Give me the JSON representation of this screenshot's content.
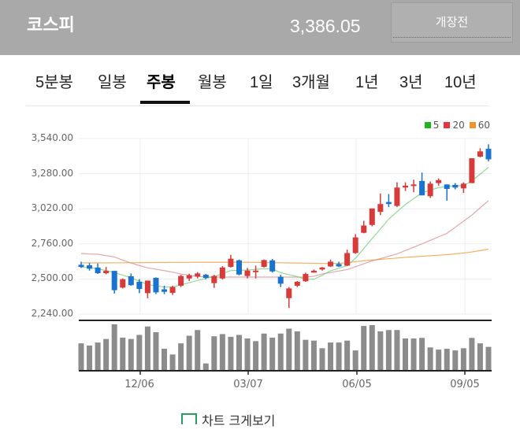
{
  "header": {
    "title": "코스피",
    "price": "3,386.05",
    "status_button": "개장전"
  },
  "tabs": [
    {
      "label": "5분봉",
      "active": false
    },
    {
      "label": "일봉",
      "active": false
    },
    {
      "label": "주봉",
      "active": true
    },
    {
      "label": "월봉",
      "active": false
    },
    {
      "label": "1일",
      "active": false
    },
    {
      "label": "3개월",
      "active": false
    },
    {
      "label": "1년",
      "active": false
    },
    {
      "label": "3년",
      "active": false
    },
    {
      "label": "10년",
      "active": false
    }
  ],
  "bottom_link": "차트 크게보기",
  "chart_data": {
    "type": "candlestick",
    "title": "",
    "legend": [
      {
        "label": "5",
        "color": "#1fb31f"
      },
      {
        "label": "20",
        "color": "#e8343c"
      },
      {
        "label": "60",
        "color": "#f0962e"
      }
    ],
    "legend_position": "top-right",
    "colors": {
      "up": "#d83a3a",
      "down": "#1a73d0",
      "volume": "#8c8c8c"
    },
    "ylim": [
      2240,
      3540
    ],
    "y_ticks": [
      "3,540.00",
      "3,280.00",
      "3,020.00",
      "2,760.00",
      "2,500.00",
      "2,240.00"
    ],
    "y_tick_values": [
      3540,
      3280,
      3020,
      2760,
      2500,
      2240
    ],
    "x_ticks": [
      "12/06",
      "03/07",
      "06/05",
      "09/05"
    ],
    "grid": true,
    "ohlc": [
      [
        2605,
        2628,
        2581,
        2589
      ],
      [
        2601,
        2618,
        2562,
        2576
      ],
      [
        2585,
        2615,
        2537,
        2543
      ],
      [
        2543,
        2589,
        2535,
        2560
      ],
      [
        2560,
        2560,
        2392,
        2417
      ],
      [
        2436,
        2504,
        2430,
        2498
      ],
      [
        2520,
        2541,
        2450,
        2454
      ],
      [
        2479,
        2498,
        2395,
        2426
      ],
      [
        2395,
        2488,
        2357,
        2488
      ],
      [
        2508,
        2512,
        2388,
        2401
      ],
      [
        2423,
        2450,
        2388,
        2405
      ],
      [
        2397,
        2450,
        2382,
        2440
      ],
      [
        2450,
        2531,
        2440,
        2522
      ],
      [
        2504,
        2539,
        2485,
        2527
      ],
      [
        2518,
        2551,
        2504,
        2541
      ],
      [
        2531,
        2537,
        2498,
        2508
      ],
      [
        2469,
        2531,
        2434,
        2522
      ],
      [
        2504,
        2595,
        2496,
        2585
      ],
      [
        2589,
        2679,
        2585,
        2650
      ],
      [
        2638,
        2644,
        2527,
        2533
      ],
      [
        2522,
        2582,
        2504,
        2562
      ],
      [
        2556,
        2599,
        2504,
        2562
      ],
      [
        2589,
        2644,
        2585,
        2640
      ],
      [
        2638,
        2648,
        2547,
        2556
      ],
      [
        2516,
        2531,
        2440,
        2465
      ],
      [
        2358,
        2440,
        2285,
        2430
      ],
      [
        2450,
        2485,
        2440,
        2479
      ],
      [
        2483,
        2547,
        2479,
        2537
      ],
      [
        2547,
        2570,
        2547,
        2561
      ],
      [
        2570,
        2589,
        2562,
        2585
      ],
      [
        2593,
        2644,
        2589,
        2628
      ],
      [
        2611,
        2628,
        2589,
        2593
      ],
      [
        2599,
        2717,
        2595,
        2692
      ],
      [
        2692,
        2832,
        2686,
        2808
      ],
      [
        2842,
        2931,
        2838,
        2896
      ],
      [
        2900,
        3022,
        2890,
        3022
      ],
      [
        2997,
        3133,
        2973,
        3055
      ],
      [
        3070,
        3129,
        3032,
        3055
      ],
      [
        3041,
        3216,
        3032,
        3177
      ],
      [
        3177,
        3216,
        3152,
        3191
      ],
      [
        3191,
        3235,
        3142,
        3200
      ],
      [
        3226,
        3288,
        3119,
        3119
      ],
      [
        3113,
        3222,
        3100,
        3206
      ],
      [
        3210,
        3245,
        3191,
        3232
      ],
      [
        3200,
        3200,
        3080,
        3167
      ],
      [
        3197,
        3210,
        3164,
        3177
      ],
      [
        3171,
        3216,
        3138,
        3206
      ],
      [
        3210,
        3394,
        3210,
        3394
      ],
      [
        3406,
        3468,
        3400,
        3445
      ],
      [
        3464,
        3497,
        3371,
        3386
      ]
    ],
    "ma5": [
      2589,
      2583,
      2576,
      2562,
      2547,
      2528,
      2508,
      2484,
      2459,
      2450,
      2440,
      2441,
      2456,
      2472,
      2489,
      2504,
      2518,
      2540,
      2562,
      2564,
      2566,
      2571,
      2576,
      2574,
      2547,
      2532,
      2518,
      2498,
      2498,
      2527,
      2560,
      2580,
      2599,
      2653,
      2726,
      2799,
      2871,
      2944,
      2998,
      3051,
      3095,
      3138,
      3158,
      3177,
      3184,
      3191,
      3191,
      3226,
      3277,
      3327
    ],
    "ma20": [
      2688,
      2685,
      2683,
      2673,
      2663,
      2640,
      2618,
      2600,
      2582,
      2572,
      2562,
      2550,
      2537,
      2528,
      2518,
      2516,
      2514,
      2514,
      2514,
      2514,
      2514,
      2514,
      2514,
      2514,
      2514,
      2514,
      2514,
      2514,
      2520,
      2537,
      2548,
      2559,
      2570,
      2591,
      2613,
      2634,
      2651,
      2668,
      2686,
      2711,
      2735,
      2760,
      2786,
      2812,
      2838,
      2883,
      2928,
      2973,
      3027,
      3080
    ],
    "ma60": [
      2619,
      2619,
      2619,
      2619,
      2620,
      2620,
      2620,
      2621,
      2621,
      2622,
      2622,
      2623,
      2623,
      2623,
      2624,
      2624,
      2624,
      2624,
      2624,
      2624,
      2624,
      2623,
      2622,
      2621,
      2620,
      2619,
      2618,
      2617,
      2616,
      2615,
      2615,
      2616,
      2620,
      2628,
      2635,
      2640,
      2645,
      2650,
      2655,
      2660,
      2664,
      2668,
      2672,
      2676,
      2680,
      2686,
      2692,
      2700,
      2710,
      2721
    ],
    "volume_relative": [
      98,
      90,
      101,
      114,
      168,
      119,
      114,
      129,
      160,
      139,
      78,
      57,
      98,
      126,
      147,
      24,
      124,
      132,
      122,
      129,
      116,
      106,
      134,
      119,
      134,
      152,
      142,
      111,
      108,
      80,
      101,
      101,
      108,
      72,
      162,
      165,
      142,
      147,
      147,
      116,
      116,
      118,
      83,
      75,
      78,
      72,
      80,
      118,
      98,
      85
    ]
  }
}
